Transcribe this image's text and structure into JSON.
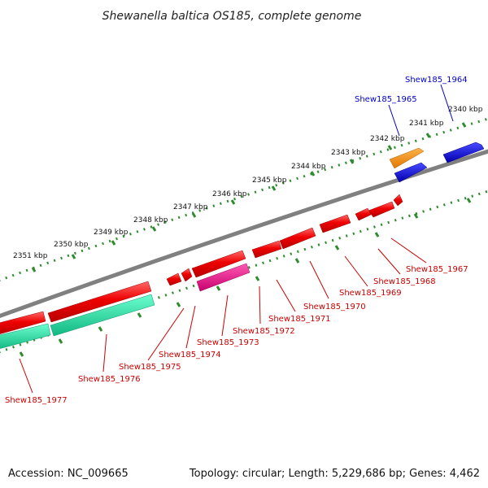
{
  "header": {
    "title": "Shewanella baltica OS185, complete genome"
  },
  "footer": {
    "accession": "Accession: NC_009665",
    "summary": "Topology: circular; Length: 5,229,686 bp; Genes: 4,462"
  },
  "colors": {
    "backbone": "#808080",
    "scale_dots": "#2e8b2e",
    "forward_label": "#0000cc",
    "reverse_label": "#cc0000",
    "red_gene": "#ee0000",
    "blue_gene": "#0000dd",
    "orange_gene": "#ff8c00",
    "magenta_gene": "#e8168c",
    "teal_gene": "#20e0a0"
  },
  "scale_labels": [
    "2340 kbp",
    "2341 kbp",
    "2342 kbp",
    "2343 kbp",
    "2344 kbp",
    "2345 kbp",
    "2346 kbp",
    "2347 kbp",
    "2348 kbp",
    "2349 kbp",
    "2350 kbp",
    "2351 kbp"
  ],
  "forward_labels": [
    "Shew185_1964",
    "Shew185_1965"
  ],
  "reverse_labels": [
    "Shew185_1967",
    "Shew185_1968",
    "Shew185_1969",
    "Shew185_1970",
    "Shew185_1971",
    "Shew185_1972",
    "Shew185_1973",
    "Shew185_1974",
    "Shew185_1975",
    "Shew185_1976",
    "Shew185_1977"
  ]
}
